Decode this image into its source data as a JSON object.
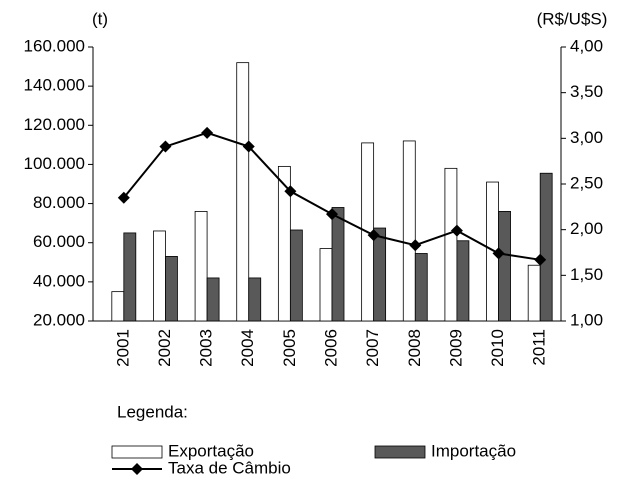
{
  "chart_data": {
    "type": "bar_line",
    "y_label": "(t)",
    "y2_label": "(R$/U$S)",
    "legend_title": "Legenda:",
    "categories": [
      "2001",
      "2002",
      "2003",
      "2004",
      "2005",
      "2006",
      "2007",
      "2008",
      "2009",
      "2010",
      "2011"
    ],
    "series": [
      {
        "name": "Exportação",
        "type": "bar",
        "color": "#ffffff",
        "values": [
          35000,
          66000,
          76000,
          152000,
          99000,
          57000,
          111000,
          112000,
          98000,
          91000,
          48500
        ]
      },
      {
        "name": "Importação",
        "type": "bar",
        "color": "#595959",
        "values": [
          65000,
          53000,
          42000,
          42000,
          66500,
          78000,
          67500,
          54500,
          61000,
          76000,
          95500
        ]
      },
      {
        "name": "Taxa de Câmbio",
        "type": "line",
        "axis": "y2",
        "color": "#000000",
        "values": [
          2.35,
          2.91,
          3.06,
          2.91,
          2.42,
          2.17,
          1.94,
          1.83,
          1.99,
          1.74,
          1.67
        ]
      }
    ],
    "ylim": [
      20000,
      160000
    ],
    "yticks": [
      {
        "value": 20000,
        "label": "20.000"
      },
      {
        "value": 40000,
        "label": "40.000"
      },
      {
        "value": 60000,
        "label": "60.000"
      },
      {
        "value": 80000,
        "label": "80.000"
      },
      {
        "value": 100000,
        "label": "100.000"
      },
      {
        "value": 120000,
        "label": "120.000"
      },
      {
        "value": 140000,
        "label": "140.000"
      },
      {
        "value": 160000,
        "label": "160.000"
      }
    ],
    "y2lim": [
      1,
      4
    ],
    "y2ticks": [
      {
        "value": 1,
        "label": "1,00"
      },
      {
        "value": 1.5,
        "label": "1,50"
      },
      {
        "value": 2,
        "label": "2,00"
      },
      {
        "value": 2.5,
        "label": "2,50"
      },
      {
        "value": 3,
        "label": "3,00"
      },
      {
        "value": 3.5,
        "label": "3,50"
      },
      {
        "value": 4,
        "label": "4,00"
      }
    ]
  }
}
